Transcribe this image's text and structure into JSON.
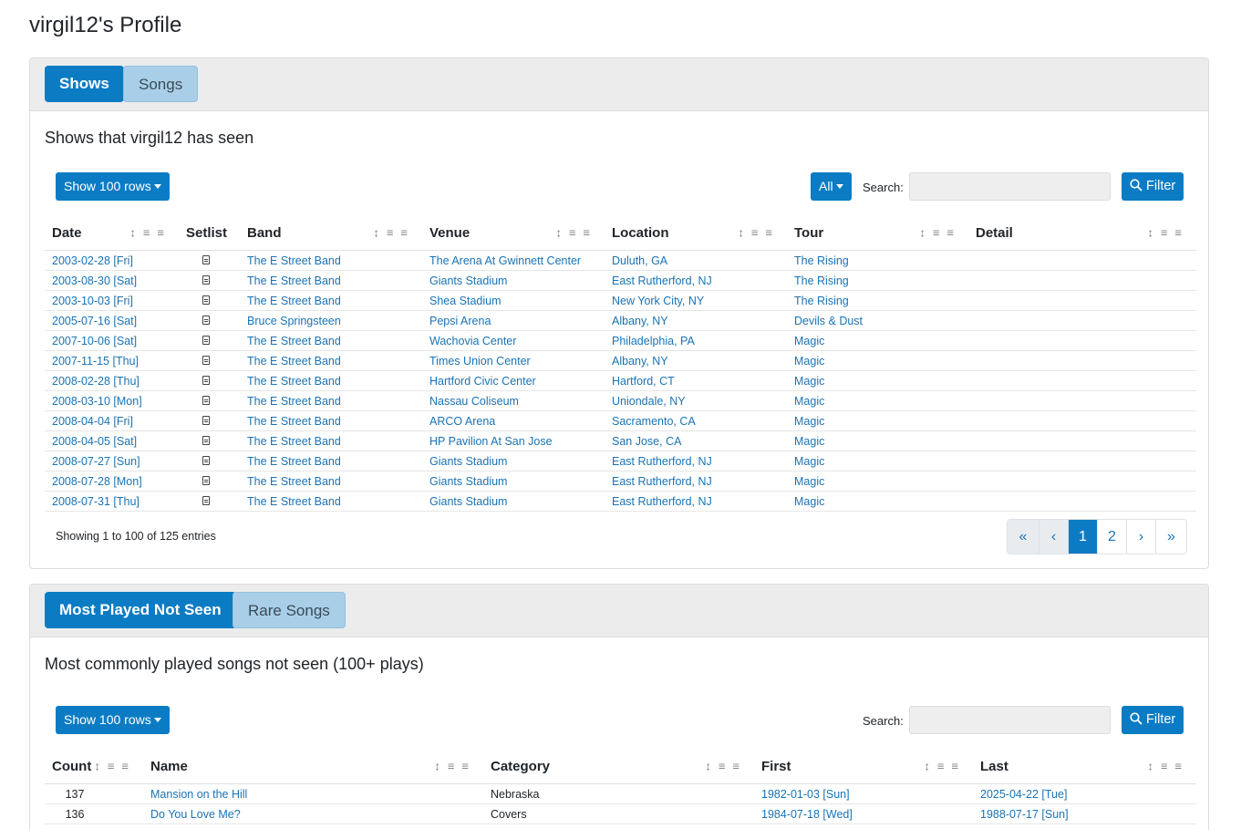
{
  "page_title": "virgil12's Profile",
  "shows_card": {
    "tabs": [
      {
        "label": "Shows",
        "active": true
      },
      {
        "label": "Songs",
        "active": false
      }
    ],
    "subtitle": "Shows that virgil12 has seen",
    "rows_button": "Show 100 rows",
    "all_button": "All",
    "search_label": "Search:",
    "search_value": "",
    "filter_button": "Filter",
    "columns": [
      "Date",
      "Setlist",
      "Band",
      "Venue",
      "Location",
      "Tour",
      "Detail"
    ],
    "rows": [
      {
        "date": "2003-02-28 [Fri]",
        "band": "The E Street Band",
        "venue": "The Arena At Gwinnett Center",
        "location": "Duluth, GA",
        "tour": "The Rising",
        "detail": ""
      },
      {
        "date": "2003-08-30 [Sat]",
        "band": "The E Street Band",
        "venue": "Giants Stadium",
        "location": "East Rutherford, NJ",
        "tour": "The Rising",
        "detail": ""
      },
      {
        "date": "2003-10-03 [Fri]",
        "band": "The E Street Band",
        "venue": "Shea Stadium",
        "location": "New York City, NY",
        "tour": "The Rising",
        "detail": ""
      },
      {
        "date": "2005-07-16 [Sat]",
        "band": "Bruce Springsteen",
        "venue": "Pepsi Arena",
        "location": "Albany, NY",
        "tour": "Devils & Dust",
        "detail": ""
      },
      {
        "date": "2007-10-06 [Sat]",
        "band": "The E Street Band",
        "venue": "Wachovia Center",
        "location": "Philadelphia, PA",
        "tour": "Magic",
        "detail": ""
      },
      {
        "date": "2007-11-15 [Thu]",
        "band": "The E Street Band",
        "venue": "Times Union Center",
        "location": "Albany, NY",
        "tour": "Magic",
        "detail": ""
      },
      {
        "date": "2008-02-28 [Thu]",
        "band": "The E Street Band",
        "venue": "Hartford Civic Center",
        "location": "Hartford, CT",
        "tour": "Magic",
        "detail": ""
      },
      {
        "date": "2008-03-10 [Mon]",
        "band": "The E Street Band",
        "venue": "Nassau Coliseum",
        "location": "Uniondale, NY",
        "tour": "Magic",
        "detail": ""
      },
      {
        "date": "2008-04-04 [Fri]",
        "band": "The E Street Band",
        "venue": "ARCO Arena",
        "location": "Sacramento, CA",
        "tour": "Magic",
        "detail": ""
      },
      {
        "date": "2008-04-05 [Sat]",
        "band": "The E Street Band",
        "venue": "HP Pavilion At San Jose",
        "location": "San Jose, CA",
        "tour": "Magic",
        "detail": ""
      },
      {
        "date": "2008-07-27 [Sun]",
        "band": "The E Street Band",
        "venue": "Giants Stadium",
        "location": "East Rutherford, NJ",
        "tour": "Magic",
        "detail": ""
      },
      {
        "date": "2008-07-28 [Mon]",
        "band": "The E Street Band",
        "venue": "Giants Stadium",
        "location": "East Rutherford, NJ",
        "tour": "Magic",
        "detail": ""
      },
      {
        "date": "2008-07-31 [Thu]",
        "band": "The E Street Band",
        "venue": "Giants Stadium",
        "location": "East Rutherford, NJ",
        "tour": "Magic",
        "detail": ""
      }
    ],
    "entries_info": "Showing 1 to 100 of 125 entries",
    "pagination": {
      "first": "«",
      "prev": "‹",
      "pages": [
        "1",
        "2"
      ],
      "current": "1",
      "next": "›",
      "last": "»"
    }
  },
  "songs_card": {
    "tabs": [
      {
        "label": "Most Played Not Seen",
        "active": true
      },
      {
        "label": "Rare Songs",
        "active": false
      }
    ],
    "subtitle": "Most commonly played songs not seen (100+ plays)",
    "rows_button": "Show 100 rows",
    "search_label": "Search:",
    "search_value": "",
    "filter_button": "Filter",
    "columns": [
      "Count",
      "Name",
      "Category",
      "First",
      "Last"
    ],
    "rows": [
      {
        "count": "137",
        "name": "Mansion on the Hill",
        "category": "Nebraska",
        "first": "1982-01-03 [Sun]",
        "last": "2025-04-22 [Tue]"
      },
      {
        "count": "136",
        "name": "Do You Love Me?",
        "category": "Covers",
        "first": "1984-07-18 [Wed]",
        "last": "1988-07-17 [Sun]"
      }
    ]
  },
  "colors": {
    "primary": "#0b7cc4",
    "link": "#1a73b5",
    "tab_inactive": "#a9cfe8",
    "header_bg": "#ececec"
  },
  "icons": {
    "sort": "sort-icon",
    "column_menu": "column-menu-icon",
    "setlist": "file-text-icon",
    "filter": "search-icon"
  }
}
